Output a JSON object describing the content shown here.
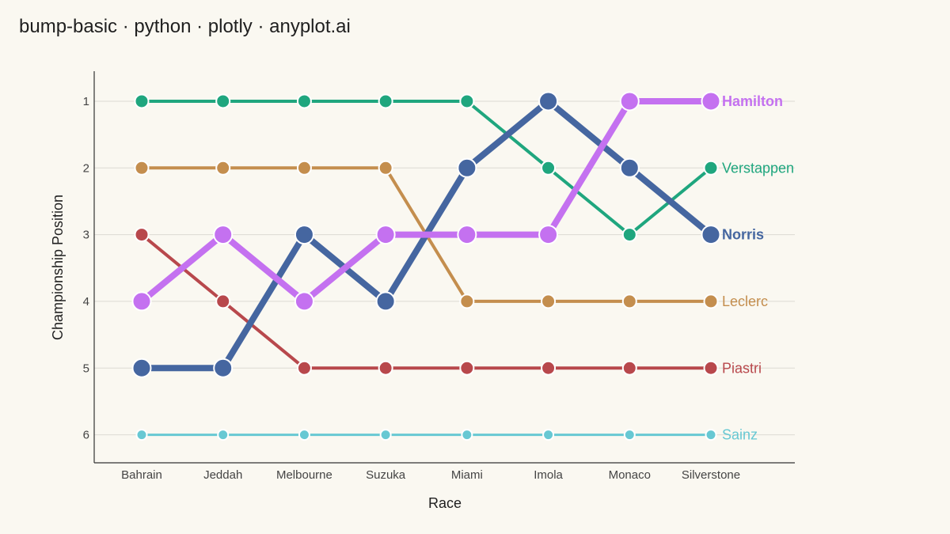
{
  "page": {
    "title": "bump-basic · python · plotly · anyplot.ai"
  },
  "chart_data": {
    "type": "line",
    "subtype": "bump",
    "title": "bump-basic · python · plotly · anyplot.ai",
    "xlabel": "Race",
    "ylabel": "Championship Position",
    "categories": [
      "Bahrain",
      "Jeddah",
      "Melbourne",
      "Suzuka",
      "Miami",
      "Imola",
      "Monaco",
      "Silverstone"
    ],
    "y_ticks": [
      1,
      2,
      3,
      4,
      5,
      6
    ],
    "ylim": [
      6.42,
      0.55
    ],
    "y_reversed": true,
    "grid": "horizontal",
    "legend": "end-of-line labels",
    "series": [
      {
        "name": "Verstappen",
        "color": "#1FA67E",
        "emphasis": false,
        "values": [
          1,
          1,
          1,
          1,
          1,
          2,
          3,
          2
        ]
      },
      {
        "name": "Leclerc",
        "color": "#C48E4E",
        "emphasis": false,
        "values": [
          2,
          2,
          2,
          2,
          4,
          4,
          4,
          4
        ]
      },
      {
        "name": "Piastri",
        "color": "#B8484C",
        "emphasis": false,
        "values": [
          3,
          4,
          5,
          5,
          5,
          5,
          5,
          5
        ]
      },
      {
        "name": "Sainz",
        "color": "#67C8D3",
        "emphasis": false,
        "values": [
          6,
          6,
          6,
          6,
          6,
          6,
          6,
          6
        ]
      },
      {
        "name": "Norris",
        "color": "#4566A0",
        "emphasis": true,
        "values": [
          5,
          5,
          3,
          4,
          2,
          1,
          2,
          3
        ]
      },
      {
        "name": "Hamilton",
        "color": "#C471F0",
        "emphasis": true,
        "values": [
          4,
          3,
          4,
          3,
          3,
          3,
          1,
          1
        ]
      }
    ],
    "colors": {
      "background": "#FAF8F1",
      "grid": "#DCDAD3",
      "axis": "#333333"
    }
  }
}
